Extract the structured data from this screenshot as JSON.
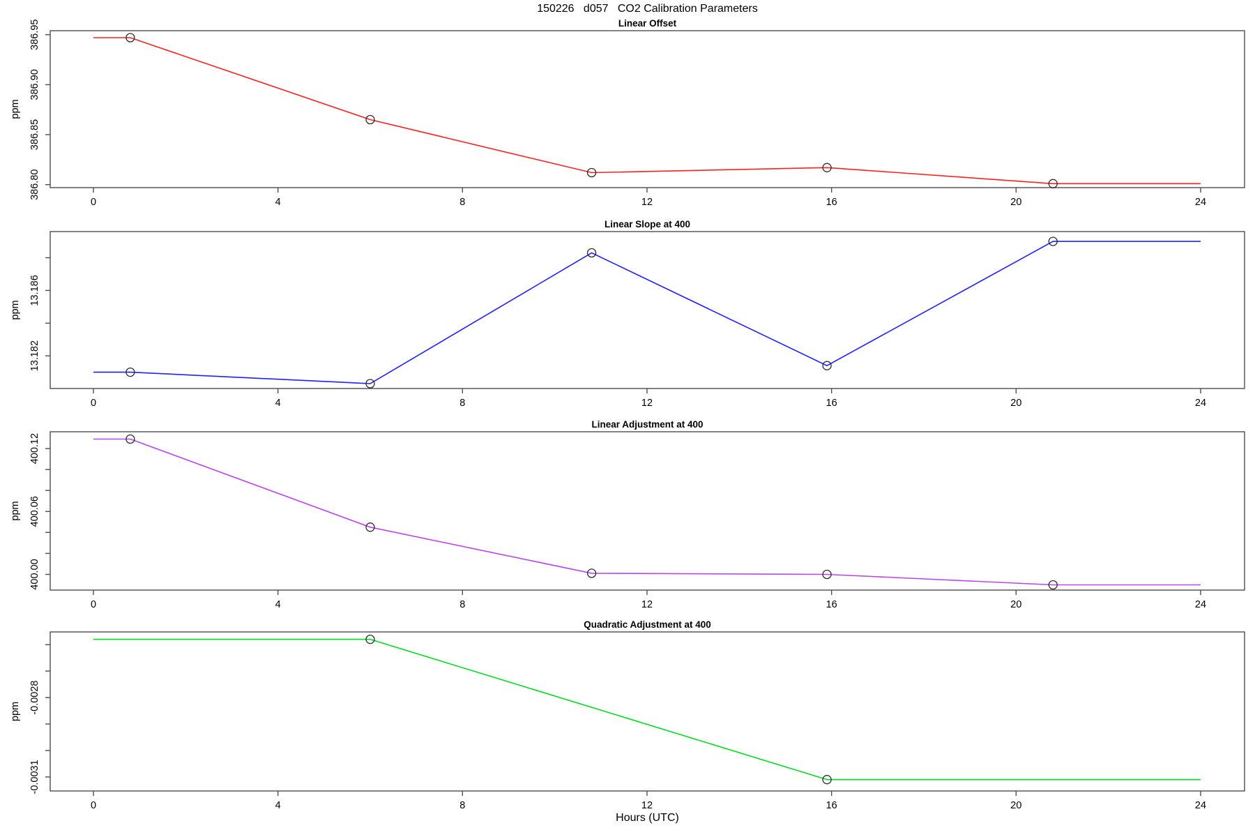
{
  "title": "150226   d057   CO2 Calibration Parameters",
  "xlabel": "Hours (UTC)",
  "marker_style": "open-circle",
  "chart_data": [
    {
      "type": "line",
      "title": "Linear Offset",
      "ylabel": "ppm",
      "color": "#ff2020",
      "grid": false,
      "legend": false,
      "x_ticks": [
        0,
        4,
        8,
        12,
        16,
        20,
        24
      ],
      "xlim": [
        -0.94,
        24.95
      ],
      "ylim": [
        386.797,
        386.954
      ],
      "y_ticks": [
        {
          "value": 386.8,
          "label": "386.80"
        },
        {
          "value": 386.85,
          "label": "386.85"
        },
        {
          "value": 386.9,
          "label": "386.90"
        },
        {
          "value": 386.95,
          "label": "386.95"
        }
      ],
      "line": [
        [
          0,
          386.947
        ],
        [
          0.8,
          386.947
        ],
        [
          6,
          386.865
        ],
        [
          10.8,
          386.812
        ],
        [
          15.9,
          386.817
        ],
        [
          20.8,
          386.801
        ],
        [
          24,
          386.801
        ]
      ],
      "markers": [
        [
          0.8,
          386.947
        ],
        [
          6,
          386.865
        ],
        [
          10.8,
          386.812
        ],
        [
          15.9,
          386.817
        ],
        [
          20.8,
          386.801
        ]
      ]
    },
    {
      "type": "line",
      "title": "Linear Slope at 400",
      "ylabel": "ppm",
      "color": "#2020ff",
      "grid": false,
      "legend": false,
      "x_ticks": [
        0,
        4,
        8,
        12,
        16,
        20,
        24
      ],
      "xlim": [
        -0.94,
        24.95
      ],
      "ylim": [
        13.18,
        13.1896
      ],
      "y_ticks": [
        {
          "value": 13.182,
          "label": "13.182"
        },
        {
          "value": 13.184,
          "label": ""
        },
        {
          "value": 13.186,
          "label": "13.186"
        },
        {
          "value": 13.188,
          "label": ""
        }
      ],
      "line": [
        [
          0,
          13.181
        ],
        [
          0.8,
          13.181
        ],
        [
          6,
          13.1803
        ],
        [
          10.8,
          13.1883
        ],
        [
          15.9,
          13.1814
        ],
        [
          20.8,
          13.189
        ],
        [
          24,
          13.189
        ]
      ],
      "markers": [
        [
          0.8,
          13.181
        ],
        [
          6,
          13.1803
        ],
        [
          10.8,
          13.1883
        ],
        [
          15.9,
          13.1814
        ],
        [
          20.8,
          13.189
        ]
      ]
    },
    {
      "type": "line",
      "title": "Linear Adjustment at 400",
      "ylabel": "ppm",
      "color": "#bb44ee",
      "grid": false,
      "legend": false,
      "x_ticks": [
        0,
        4,
        8,
        12,
        16,
        20,
        24
      ],
      "xlim": [
        -0.94,
        24.95
      ],
      "ylim": [
        399.985,
        400.136
      ],
      "y_ticks": [
        {
          "value": 400.0,
          "label": "400.00"
        },
        {
          "value": 400.02,
          "label": ""
        },
        {
          "value": 400.04,
          "label": ""
        },
        {
          "value": 400.06,
          "label": "400.06"
        },
        {
          "value": 400.08,
          "label": ""
        },
        {
          "value": 400.1,
          "label": ""
        },
        {
          "value": 400.12,
          "label": "400.12"
        }
      ],
      "line": [
        [
          0,
          400.129
        ],
        [
          0.8,
          400.129
        ],
        [
          6,
          400.045
        ],
        [
          10.8,
          400.001
        ],
        [
          15.9,
          400.0
        ],
        [
          20.8,
          399.99
        ],
        [
          24,
          399.99
        ]
      ],
      "markers": [
        [
          0.8,
          400.129
        ],
        [
          6,
          400.045
        ],
        [
          10.8,
          400.001
        ],
        [
          15.9,
          400.0
        ],
        [
          20.8,
          399.99
        ]
      ]
    },
    {
      "type": "line",
      "title": "Quadratic Adjustment at 400",
      "ylabel": "ppm",
      "color": "#00dd22",
      "grid": false,
      "legend": false,
      "x_ticks": [
        0,
        4,
        8,
        12,
        16,
        20,
        24
      ],
      "xlim": [
        -0.94,
        24.95
      ],
      "ylim": [
        -0.003153,
        -0.002552
      ],
      "y_ticks": [
        {
          "value": -0.0031,
          "label": "-0.0031"
        },
        {
          "value": -0.003,
          "label": ""
        },
        {
          "value": -0.0029,
          "label": ""
        },
        {
          "value": -0.0028,
          "label": "-0.0028"
        },
        {
          "value": -0.0027,
          "label": ""
        },
        {
          "value": -0.0026,
          "label": ""
        }
      ],
      "line": [
        [
          0,
          -0.00258
        ],
        [
          6,
          -0.00258
        ],
        [
          15.9,
          -0.00311
        ],
        [
          24,
          -0.00311
        ]
      ],
      "markers": [
        [
          6,
          -0.00258
        ],
        [
          15.9,
          -0.00311
        ]
      ]
    }
  ]
}
